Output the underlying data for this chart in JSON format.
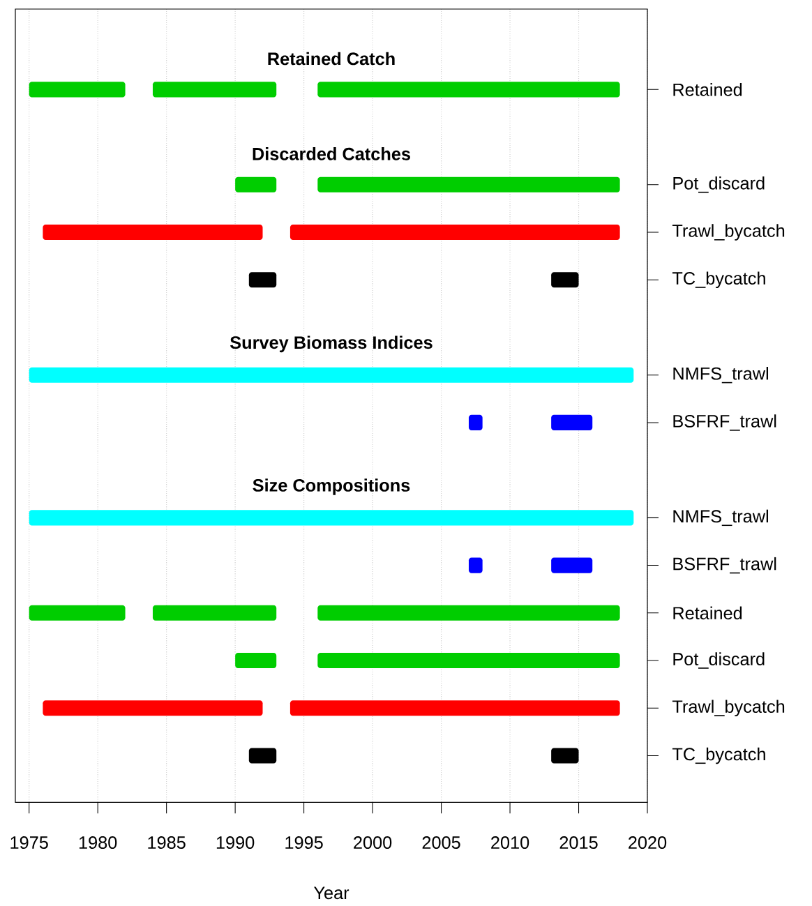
{
  "chart_data": {
    "type": "bar",
    "orientation": "horizontal",
    "xlabel": "Year",
    "categories": [
      null,
      "Retained",
      null,
      "Pot_discard",
      "Trawl_bycatch",
      "TC_bycatch",
      null,
      "NMFS_trawl",
      "BSFRF_trawl",
      null,
      "NMFS_trawl",
      "BSFRF_trawl",
      "Retained",
      "Pot_discard",
      "Trawl_bycatch",
      "TC_bycatch"
    ],
    "series": [
      {
        "values": [
          null,
          7,
          null,
          3,
          16,
          2,
          null,
          44,
          1,
          null,
          44,
          1,
          7,
          3,
          16,
          2
        ],
        "base": [
          null,
          1975,
          null,
          1990,
          1976,
          1991,
          null,
          1975,
          2007,
          null,
          1975,
          2007,
          1975,
          1990,
          1976,
          1991
        ],
        "colors": [
          null,
          "#00cd00",
          null,
          "#00cd00",
          "#ff0000",
          "#000000",
          null,
          "#00ffff",
          "#0000ff",
          null,
          "#00ffff",
          "#0000ff",
          "#00cd00",
          "#00cd00",
          "#ff0000",
          "#000000"
        ]
      },
      {
        "values": [
          null,
          9,
          null,
          22,
          24,
          2,
          null,
          null,
          3,
          null,
          null,
          3,
          9,
          22,
          24,
          2
        ],
        "base": [
          null,
          1984,
          null,
          1996,
          1994,
          2013,
          null,
          null,
          2013,
          null,
          null,
          2013,
          1984,
          1996,
          1994,
          2013
        ],
        "colors": [
          null,
          "#00cd00",
          null,
          "#00cd00",
          "#ff0000",
          "#000000",
          null,
          null,
          "#0000ff",
          null,
          null,
          "#0000ff",
          "#00cd00",
          "#00cd00",
          "#ff0000",
          "#000000"
        ]
      },
      {
        "values": [
          null,
          22,
          null,
          null,
          null,
          null,
          null,
          null,
          null,
          null,
          null,
          null,
          22,
          null,
          null,
          null
        ],
        "base": [
          null,
          1996,
          null,
          null,
          null,
          null,
          null,
          null,
          null,
          null,
          null,
          null,
          1996,
          null,
          null,
          null
        ],
        "colors": [
          null,
          "#00cd00",
          null,
          null,
          null,
          null,
          null,
          null,
          null,
          null,
          null,
          null,
          "#00cd00",
          null,
          null,
          null
        ]
      }
    ],
    "annotations": [
      "Retained Catch",
      "Discarded Catches",
      "Survey Biomass Indices",
      "Size Compositions"
    ],
    "xlim": [
      1974,
      2020
    ],
    "xticks": [
      1975,
      1980,
      1985,
      1990,
      1995,
      2000,
      2005,
      2010,
      2015,
      2020
    ],
    "grid": "x"
  }
}
